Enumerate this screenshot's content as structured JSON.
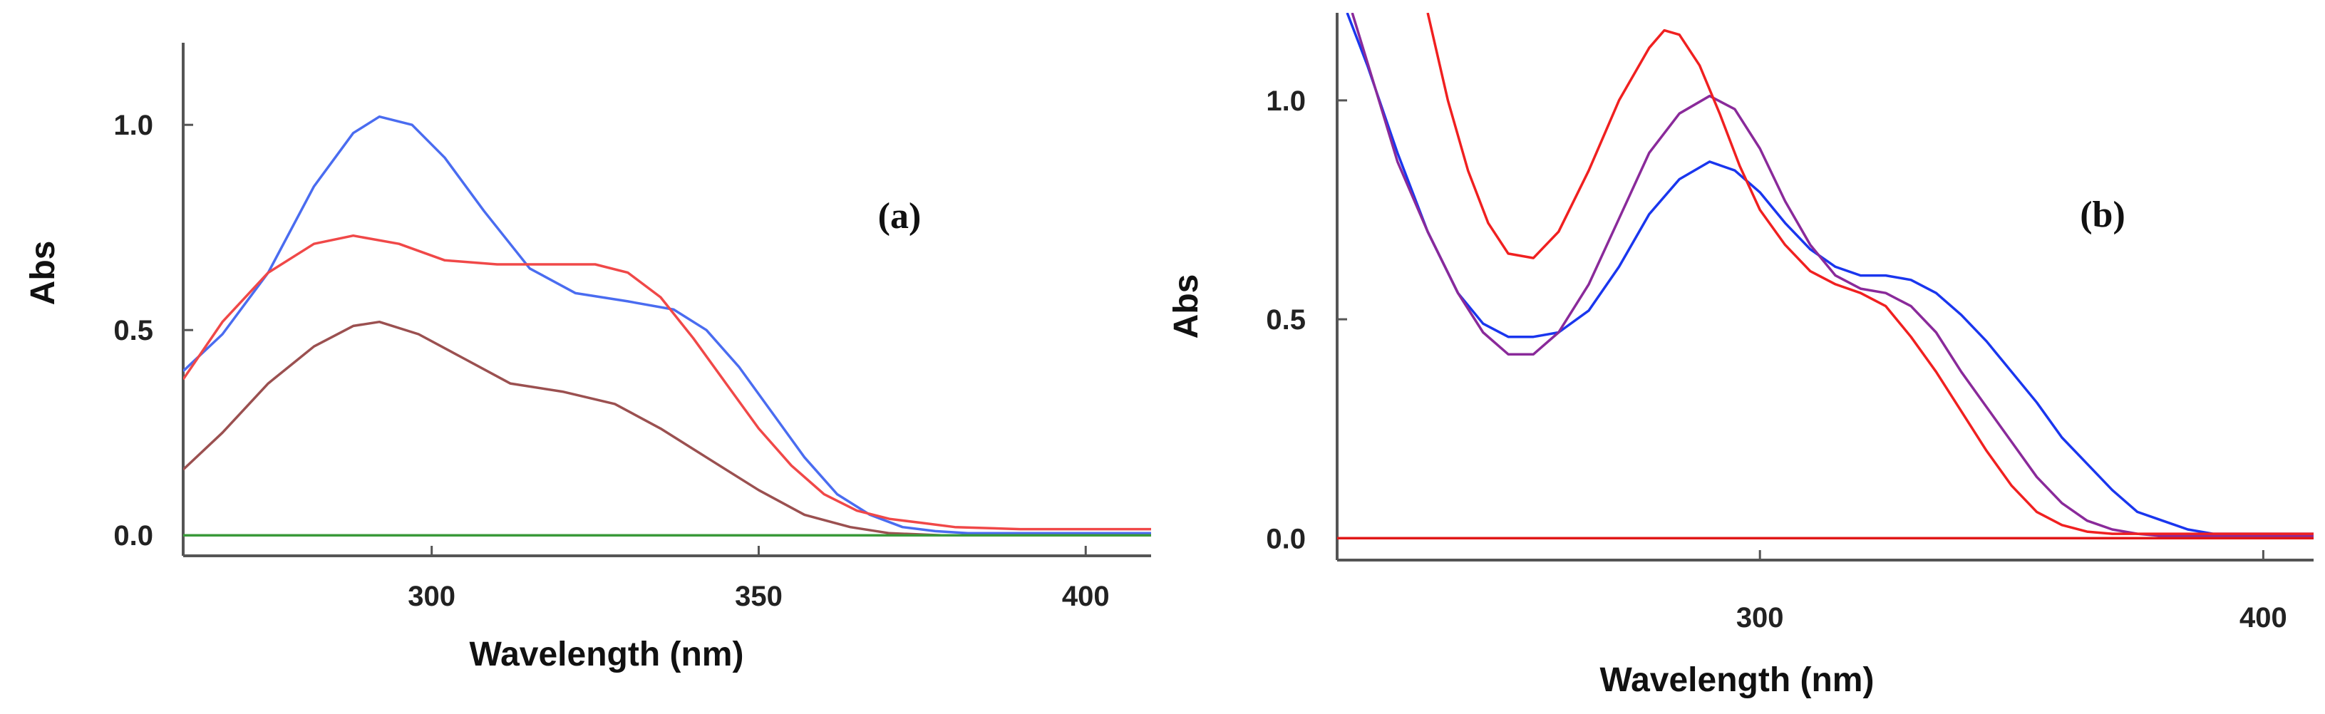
{
  "chart_data": [
    {
      "type": "line",
      "panel_label": "(a)",
      "xlabel": "Wavelength (nm)",
      "ylabel": "Abs",
      "xlim": [
        262,
        410
      ],
      "ylim": [
        -0.05,
        1.2
      ],
      "xticks": [
        300,
        350,
        400
      ],
      "xtick_labels": [
        "300",
        "350",
        "400"
      ],
      "yticks": [
        0.0,
        0.5,
        1.0
      ],
      "ytick_labels": [
        "0.0",
        "0.5",
        "1.0"
      ],
      "grid": false,
      "series": [
        {
          "name": "blue",
          "color": "#4a6cf0",
          "x": [
            262,
            268,
            275,
            282,
            288,
            292,
            297,
            302,
            308,
            315,
            322,
            330,
            337,
            342,
            347,
            352,
            357,
            362,
            367,
            372,
            377,
            382,
            390,
            400,
            410
          ],
          "y": [
            0.4,
            0.49,
            0.64,
            0.85,
            0.98,
            1.02,
            1.0,
            0.92,
            0.79,
            0.65,
            0.59,
            0.57,
            0.55,
            0.5,
            0.41,
            0.3,
            0.19,
            0.1,
            0.05,
            0.02,
            0.01,
            0.005,
            0.005,
            0.005,
            0.005
          ]
        },
        {
          "name": "red",
          "color": "#f04848",
          "x": [
            262,
            268,
            275,
            282,
            288,
            295,
            302,
            310,
            318,
            325,
            330,
            335,
            340,
            345,
            350,
            355,
            360,
            365,
            370,
            375,
            380,
            390,
            400,
            410
          ],
          "y": [
            0.38,
            0.52,
            0.64,
            0.71,
            0.73,
            0.71,
            0.67,
            0.66,
            0.66,
            0.66,
            0.64,
            0.58,
            0.48,
            0.37,
            0.26,
            0.17,
            0.1,
            0.06,
            0.04,
            0.03,
            0.02,
            0.015,
            0.015,
            0.015
          ]
        },
        {
          "name": "brown",
          "color": "#9b5050",
          "x": [
            262,
            268,
            275,
            282,
            288,
            292,
            298,
            305,
            312,
            320,
            328,
            335,
            342,
            350,
            357,
            364,
            370,
            378,
            390,
            400,
            410
          ],
          "y": [
            0.16,
            0.25,
            0.37,
            0.46,
            0.51,
            0.52,
            0.49,
            0.43,
            0.37,
            0.35,
            0.32,
            0.26,
            0.19,
            0.11,
            0.05,
            0.02,
            0.005,
            0.0,
            0.0,
            0.0,
            0.0
          ]
        },
        {
          "name": "green",
          "color": "#3a9a3a",
          "x": [
            262,
            410
          ],
          "y": [
            0.0,
            0.0
          ]
        }
      ]
    },
    {
      "type": "line",
      "panel_label": "(b)",
      "xlabel": "Wavelength (nm)",
      "ylabel": "Abs",
      "xlim": [
        216,
        410
      ],
      "ylim": [
        -0.05,
        1.2
      ],
      "xticks": [
        300,
        400
      ],
      "xtick_labels": [
        "300",
        "400"
      ],
      "yticks": [
        0.0,
        0.5,
        1.0
      ],
      "ytick_labels": [
        "0.0",
        "0.5",
        "1.0"
      ],
      "grid": false,
      "series": [
        {
          "name": "blue",
          "color": "#1a36ee",
          "x": [
            218,
            222,
            228,
            234,
            240,
            245,
            250,
            255,
            260,
            266,
            272,
            278,
            284,
            290,
            295,
            300,
            305,
            310,
            315,
            320,
            325,
            330,
            335,
            340,
            345,
            350,
            355,
            360,
            365,
            370,
            375,
            380,
            385,
            390,
            393,
            400,
            410
          ],
          "y": [
            1.2,
            1.08,
            0.88,
            0.7,
            0.56,
            0.49,
            0.46,
            0.46,
            0.47,
            0.52,
            0.62,
            0.74,
            0.82,
            0.86,
            0.84,
            0.79,
            0.72,
            0.66,
            0.62,
            0.6,
            0.6,
            0.59,
            0.56,
            0.51,
            0.45,
            0.38,
            0.31,
            0.23,
            0.17,
            0.11,
            0.06,
            0.04,
            0.02,
            0.01,
            0.01,
            0.01,
            0.01
          ]
        },
        {
          "name": "purple",
          "color": "#8a2a9a",
          "x": [
            219,
            223,
            228,
            234,
            240,
            245,
            250,
            255,
            260,
            266,
            272,
            278,
            284,
            290,
            295,
            300,
            305,
            310,
            315,
            320,
            325,
            330,
            335,
            340,
            345,
            350,
            355,
            360,
            365,
            370,
            375,
            380,
            390,
            400,
            410
          ],
          "y": [
            1.2,
            1.05,
            0.86,
            0.7,
            0.56,
            0.47,
            0.42,
            0.42,
            0.47,
            0.58,
            0.73,
            0.88,
            0.97,
            1.01,
            0.98,
            0.89,
            0.77,
            0.67,
            0.6,
            0.57,
            0.56,
            0.53,
            0.47,
            0.38,
            0.3,
            0.22,
            0.14,
            0.08,
            0.04,
            0.02,
            0.01,
            0.005,
            0.005,
            0.005,
            0.005
          ]
        },
        {
          "name": "red",
          "color": "#f02020",
          "x": [
            234,
            238,
            242,
            246,
            250,
            255,
            260,
            266,
            272,
            278,
            281,
            284,
            288,
            292,
            296,
            300,
            305,
            310,
            315,
            320,
            325,
            330,
            335,
            340,
            345,
            350,
            355,
            360,
            365,
            370,
            375,
            380,
            390,
            400,
            410
          ],
          "y": [
            1.2,
            1.0,
            0.84,
            0.72,
            0.65,
            0.64,
            0.7,
            0.84,
            1.0,
            1.12,
            1.16,
            1.15,
            1.08,
            0.97,
            0.85,
            0.75,
            0.67,
            0.61,
            0.58,
            0.56,
            0.53,
            0.46,
            0.38,
            0.29,
            0.2,
            0.12,
            0.06,
            0.03,
            0.015,
            0.01,
            0.01,
            0.01,
            0.01,
            0.01,
            0.01
          ]
        },
        {
          "name": "baseline",
          "color": "#e01818",
          "x": [
            216,
            410
          ],
          "y": [
            0.0,
            0.0
          ]
        }
      ]
    }
  ]
}
